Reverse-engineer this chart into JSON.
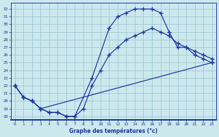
{
  "xlabel": "Graphe des températures (°c)",
  "bg_color": "#cce8ed",
  "grid_color": "#9ac8d5",
  "line_color": "#1a35a0",
  "x_ticks": [
    0,
    1,
    2,
    3,
    4,
    5,
    6,
    7,
    8,
    9,
    10,
    11,
    12,
    13,
    14,
    15,
    16,
    17,
    18,
    19,
    20,
    21,
    22,
    23
  ],
  "y_ticks": [
    18,
    19,
    20,
    21,
    22,
    23,
    24,
    25,
    26,
    27,
    28,
    29,
    30,
    31,
    32
  ],
  "ylim": [
    17.5,
    32.8
  ],
  "xlim": [
    -0.5,
    23.5
  ],
  "line1_x": [
    0,
    1,
    2,
    3,
    4,
    5,
    6,
    7,
    9,
    11,
    12,
    13,
    14,
    15,
    16,
    17,
    18,
    19,
    20,
    21,
    22,
    23
  ],
  "line1_y": [
    22,
    20.5,
    20,
    19,
    18.5,
    18.5,
    18,
    18,
    23,
    29.5,
    31,
    31.5,
    32,
    32,
    32,
    31.5,
    29,
    27,
    27,
    26,
    25.5,
    25
  ],
  "line2_x": [
    0,
    1,
    2,
    3,
    4,
    5,
    6,
    7,
    8,
    9,
    10,
    11,
    12,
    13,
    14,
    15,
    16,
    17,
    18,
    19,
    20,
    21,
    22,
    23
  ],
  "line2_y": [
    22,
    20.5,
    20,
    19,
    18.5,
    18.5,
    18,
    18,
    19,
    22,
    24,
    26,
    27,
    28,
    28.5,
    29,
    29.5,
    29,
    28.5,
    27.5,
    27,
    26.5,
    26,
    25.5
  ],
  "line3_x": [
    0,
    1,
    2,
    3,
    23
  ],
  "line3_y": [
    22,
    20.5,
    20,
    19,
    25
  ]
}
